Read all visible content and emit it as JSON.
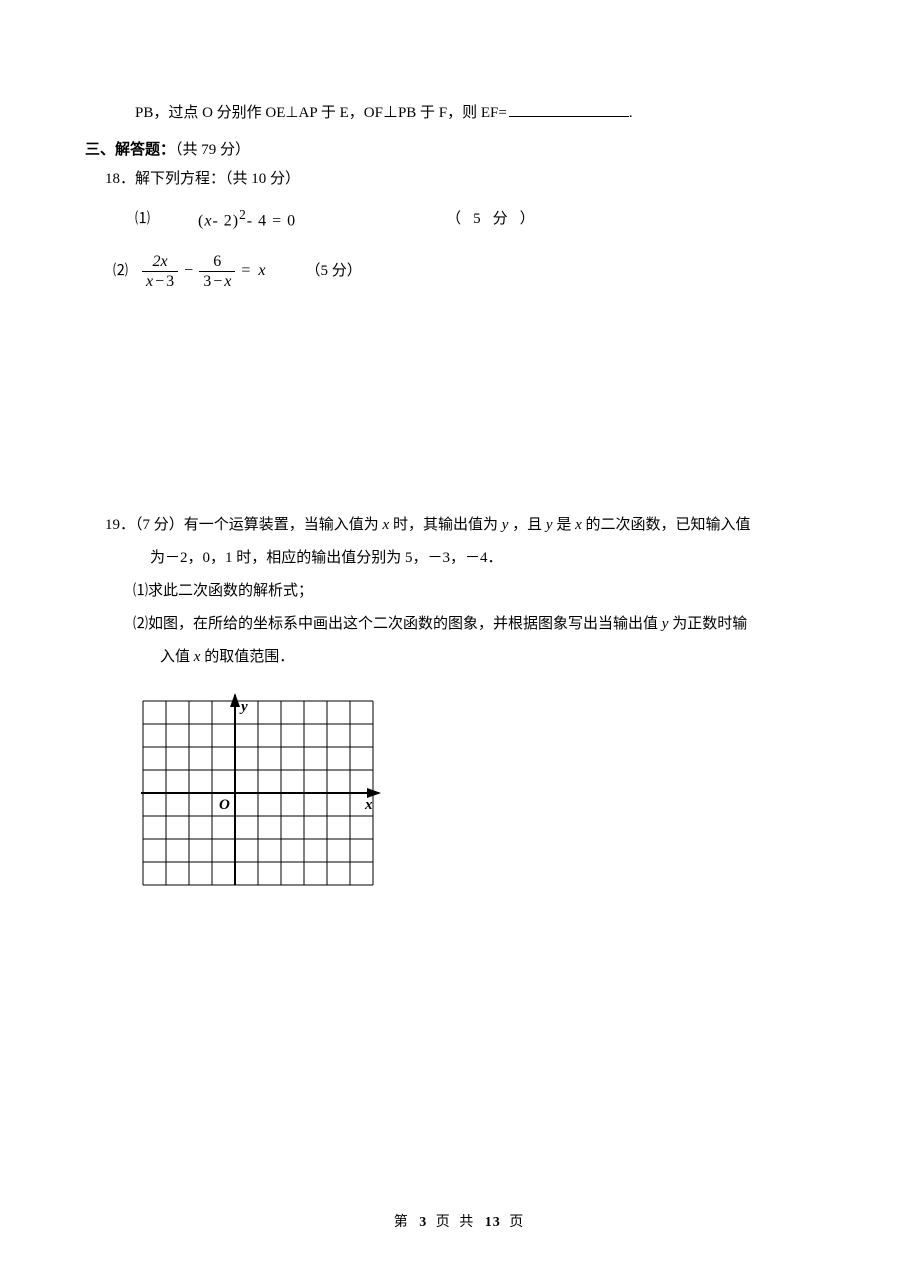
{
  "q17_tail": {
    "prefix": "PB，过点 O 分别作 OE⊥AP 于 E，OF⊥PB 于 F，则 EF=",
    "suffix": "."
  },
  "section3": {
    "heading": "三、解答题：",
    "points": "（共 79 分）"
  },
  "q18": {
    "label": "18．解下列方程：（共 10 分）",
    "p1_label": "⑴",
    "p1_lhs_a": "(",
    "p1_lhs_b": "x",
    "p1_lhs_c": "- 2)",
    "p1_lhs_d": "2",
    "p1_lhs_e": "- 4 = 0",
    "p1_points_open": "（",
    "p1_points_5": "5",
    "p1_points_fen": "分",
    "p1_points_close": "）",
    "p2_label": "⑵",
    "p2_frac1_num": "2x",
    "p2_frac1_den_a": "x",
    "p2_frac1_den_b": "3",
    "p2_op_minus": "−",
    "p2_frac2_num": "6",
    "p2_frac2_den_a": "3",
    "p2_frac2_den_b": "x",
    "p2_op_eq": "=",
    "p2_rhs": "x",
    "p2_points": "（5 分）"
  },
  "q19": {
    "first_a": "19．（7 分）有一个运算装置，当输入值为 ",
    "first_b": "x",
    "first_c": " 时，其输出值为 ",
    "first_d": "y",
    "first_e": " ，且 ",
    "first_f": "y",
    "first_g": " 是 ",
    "first_h": "x",
    "first_i": " 的二次函数，已知输入值",
    "line2": "为－2，0，1 时，相应的输出值分别为 5，－3，－4．",
    "sub1": "⑴求此二次函数的解析式；",
    "sub2_a": "⑵如图，在所给的坐标系中画出这个二次函数的图象，并根据图象写出当输出值 ",
    "sub2_b": "y",
    "sub2_c": " 为正数时输",
    "sub2_d": "入值 ",
    "sub2_e": "x",
    "sub2_f": " 的取值范围．"
  },
  "graph": {
    "cols": 10,
    "rows": 8,
    "cell": 23,
    "origin_col": 4,
    "origin_row": 4,
    "y_label": "y",
    "x_label": "x",
    "o_label": "O",
    "line_color": "#000",
    "grid_width": 1,
    "axis_width": 2
  },
  "footer": {
    "a": "第",
    "p": "3",
    "b": "页 共",
    "t": "13",
    "c": "页"
  }
}
